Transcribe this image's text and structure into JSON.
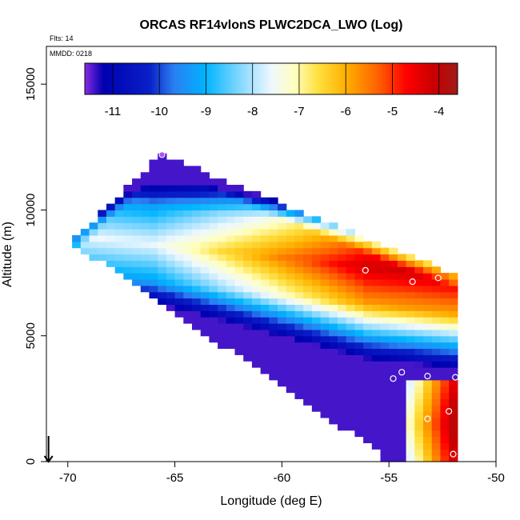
{
  "chart_data": {
    "type": "heatmap",
    "title": "ORCAS RF14vlonS PLWC2DCA_LWO (Log)",
    "annotations": {
      "flights": "Flts: 14",
      "date": "MMDD: 0218"
    },
    "xlabel": "Longitude (deg E)",
    "ylabel": "Altitude (m)",
    "xlim": [
      -71,
      -50
    ],
    "ylim": [
      0,
      16500
    ],
    "x_ticks": [
      -70,
      -65,
      -60,
      -55,
      -50
    ],
    "x_tick_labels": [
      "-70",
      "-65",
      "-60",
      "-55",
      "-50"
    ],
    "y_ticks": [
      0,
      5000,
      10000,
      15000
    ],
    "y_tick_labels": [
      "0",
      "5000",
      "10000",
      "15000"
    ],
    "colorbar": {
      "range": [
        -11.6,
        -3.6
      ],
      "ticks": [
        -11,
        -10,
        -9,
        -8,
        -7,
        -6,
        -5,
        -4
      ],
      "tick_labels": [
        "-11",
        "-10",
        "-9",
        "-8",
        "-7",
        "-6",
        "-5",
        "-4"
      ],
      "colors": [
        {
          "v": -11.6,
          "c": "#8a2be2"
        },
        {
          "v": -11.2,
          "c": "#0000b0"
        },
        {
          "v": -10.2,
          "c": "#0a20c8"
        },
        {
          "v": -9.7,
          "c": "#2a7ef0"
        },
        {
          "v": -9.0,
          "c": "#00b4ff"
        },
        {
          "v": -8.3,
          "c": "#7fd6ff"
        },
        {
          "v": -7.6,
          "c": "#eef8ff"
        },
        {
          "v": -7.1,
          "c": "#ffffc0"
        },
        {
          "v": -6.6,
          "c": "#ffe040"
        },
        {
          "v": -6.0,
          "c": "#ffb000"
        },
        {
          "v": -5.3,
          "c": "#ff6000"
        },
        {
          "v": -4.7,
          "c": "#ff0000"
        },
        {
          "v": -4.1,
          "c": "#c80000"
        },
        {
          "v": -3.6,
          "c": "#a01a1a"
        }
      ]
    },
    "field": {
      "description": "log10 liquid water content curtain along the southbound leg",
      "domain": {
        "lon_min": -69.8,
        "lon_max": -51.9,
        "alt_max": 12400
      },
      "lon_step": 0.4,
      "alt_step": 250
    },
    "arrow_marker": {
      "lon": -70.9,
      "alt_top": 700,
      "alt_bottom": 0
    },
    "flight_points": [
      {
        "lon": -65.6,
        "alt": 12200
      },
      {
        "lon": -56.1,
        "alt": 7600
      },
      {
        "lon": -53.9,
        "alt": 7150
      },
      {
        "lon": -52.7,
        "alt": 7300
      },
      {
        "lon": -54.4,
        "alt": 3550
      },
      {
        "lon": -54.8,
        "alt": 3300
      },
      {
        "lon": -53.2,
        "alt": 3400
      },
      {
        "lon": -51.9,
        "alt": 3350
      },
      {
        "lon": -52.2,
        "alt": 2000
      },
      {
        "lon": -53.2,
        "alt": 1700
      },
      {
        "lon": -52.0,
        "alt": 300
      }
    ]
  }
}
